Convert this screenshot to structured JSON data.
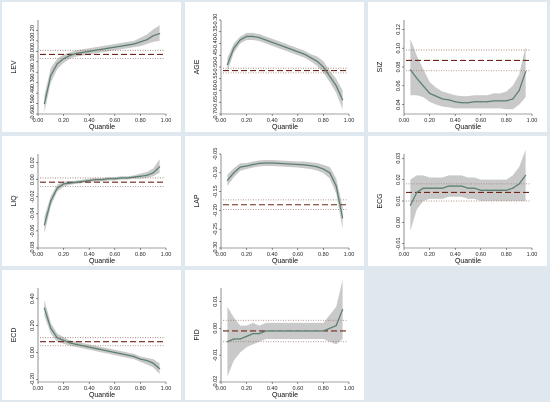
{
  "chart_data": [
    {
      "type": "line",
      "ylabel": "LEV",
      "xlabel": "Quantile",
      "ylim": [
        -0.6,
        0.3
      ],
      "yticks": [
        "-0.60",
        "-0.50",
        "-0.40",
        "-0.30",
        "-0.20",
        "-0.10",
        "0.00",
        "0.10",
        "0.20"
      ],
      "xticks": [
        "0.00",
        "0.20",
        "0.40",
        "0.60",
        "0.80",
        "1.00"
      ],
      "x": [
        0.05,
        0.1,
        0.15,
        0.2,
        0.25,
        0.3,
        0.35,
        0.4,
        0.45,
        0.5,
        0.55,
        0.6,
        0.65,
        0.7,
        0.75,
        0.8,
        0.85,
        0.9,
        0.95
      ],
      "qr": [
        -0.5,
        -0.23,
        -0.12,
        -0.07,
        -0.04,
        -0.02,
        -0.01,
        0.0,
        0.01,
        0.02,
        0.03,
        0.04,
        0.05,
        0.06,
        0.07,
        0.09,
        0.11,
        0.15,
        0.17
      ],
      "qr_lo": [
        -0.58,
        -0.3,
        -0.17,
        -0.11,
        -0.07,
        -0.05,
        -0.04,
        -0.03,
        -0.02,
        -0.01,
        0.0,
        0.01,
        0.02,
        0.03,
        0.04,
        0.05,
        0.07,
        0.09,
        0.1
      ],
      "qr_hi": [
        -0.42,
        -0.16,
        -0.07,
        -0.03,
        -0.01,
        0.01,
        0.02,
        0.03,
        0.04,
        0.05,
        0.06,
        0.07,
        0.08,
        0.09,
        0.1,
        0.13,
        0.16,
        0.21,
        0.25
      ],
      "ols": -0.03,
      "ols_ci": [
        -0.07,
        0.01
      ]
    },
    {
      "type": "line",
      "ylabel": "AGE",
      "xlabel": "Quantile",
      "ylim": [
        -0.7,
        -0.3
      ],
      "yticks": [
        "-0.70",
        "-0.65",
        "-0.60",
        "-0.55",
        "-0.50",
        "-0.45",
        "-0.40",
        "-0.35",
        "-0.30"
      ],
      "xticks": [
        "0.00",
        "0.20",
        "0.40",
        "0.60",
        "0.80",
        "1.00"
      ],
      "x": [
        0.05,
        0.1,
        0.15,
        0.2,
        0.25,
        0.3,
        0.35,
        0.4,
        0.45,
        0.5,
        0.55,
        0.6,
        0.65,
        0.7,
        0.75,
        0.8,
        0.85,
        0.9,
        0.95
      ],
      "qr": [
        -0.49,
        -0.42,
        -0.385,
        -0.37,
        -0.37,
        -0.375,
        -0.385,
        -0.395,
        -0.405,
        -0.415,
        -0.425,
        -0.435,
        -0.445,
        -0.46,
        -0.475,
        -0.5,
        -0.54,
        -0.58,
        -0.64
      ],
      "qr_lo": [
        -0.52,
        -0.44,
        -0.4,
        -0.385,
        -0.385,
        -0.39,
        -0.4,
        -0.41,
        -0.42,
        -0.43,
        -0.44,
        -0.45,
        -0.46,
        -0.475,
        -0.495,
        -0.525,
        -0.565,
        -0.61,
        -0.68
      ],
      "qr_hi": [
        -0.46,
        -0.4,
        -0.37,
        -0.355,
        -0.355,
        -0.36,
        -0.37,
        -0.38,
        -0.39,
        -0.4,
        -0.41,
        -0.42,
        -0.43,
        -0.445,
        -0.455,
        -0.475,
        -0.515,
        -0.55,
        -0.6
      ],
      "ols": -0.515,
      "ols_ci": [
        -0.525,
        -0.505
      ]
    },
    {
      "type": "line",
      "ylabel": "SIZ",
      "xlabel": "Quantile",
      "ylim": [
        0.03,
        0.13
      ],
      "yticks": [
        "0.04",
        "0.06",
        "0.08",
        "0.10",
        "0.12"
      ],
      "xticks": [
        "0.00",
        "0.20",
        "0.40",
        "0.60",
        "0.80",
        "1.00"
      ],
      "x": [
        0.05,
        0.1,
        0.15,
        0.2,
        0.25,
        0.3,
        0.35,
        0.4,
        0.45,
        0.5,
        0.55,
        0.6,
        0.65,
        0.7,
        0.75,
        0.8,
        0.85,
        0.9,
        0.95
      ],
      "qr": [
        0.077,
        0.068,
        0.06,
        0.052,
        0.049,
        0.046,
        0.045,
        0.043,
        0.042,
        0.042,
        0.043,
        0.043,
        0.043,
        0.044,
        0.044,
        0.044,
        0.046,
        0.055,
        0.075
      ],
      "qr_lo": [
        0.05,
        0.05,
        0.048,
        0.043,
        0.04,
        0.038,
        0.037,
        0.036,
        0.036,
        0.036,
        0.036,
        0.036,
        0.036,
        0.036,
        0.036,
        0.035,
        0.035,
        0.04,
        0.048
      ],
      "qr_hi": [
        0.11,
        0.092,
        0.078,
        0.064,
        0.058,
        0.054,
        0.052,
        0.05,
        0.049,
        0.049,
        0.05,
        0.05,
        0.05,
        0.052,
        0.052,
        0.054,
        0.06,
        0.072,
        0.102
      ],
      "ols": 0.087,
      "ols_ci": [
        0.076,
        0.098
      ]
    },
    {
      "type": "line",
      "ylabel": "LIQ",
      "xlabel": "Quantile",
      "ylim": [
        -0.08,
        0.03
      ],
      "yticks": [
        "-0.08",
        "-0.06",
        "-0.04",
        "-0.02",
        "0.00",
        "0.02"
      ],
      "xticks": [
        "0.00",
        "0.20",
        "0.40",
        "0.60",
        "0.80",
        "1.00"
      ],
      "x": [
        0.05,
        0.1,
        0.15,
        0.2,
        0.25,
        0.3,
        0.35,
        0.4,
        0.45,
        0.5,
        0.55,
        0.6,
        0.65,
        0.7,
        0.75,
        0.8,
        0.85,
        0.9,
        0.95
      ],
      "qr": [
        -0.053,
        -0.025,
        -0.01,
        -0.005,
        -0.004,
        -0.003,
        -0.002,
        -0.001,
        0.0,
        0.0,
        0.001,
        0.001,
        0.002,
        0.002,
        0.003,
        0.004,
        0.005,
        0.008,
        0.015
      ],
      "qr_lo": [
        -0.063,
        -0.031,
        -0.014,
        -0.008,
        -0.006,
        -0.005,
        -0.004,
        -0.003,
        -0.002,
        -0.002,
        -0.001,
        -0.001,
        0.0,
        0.0,
        0.001,
        0.001,
        0.002,
        0.004,
        0.008
      ],
      "qr_hi": [
        -0.043,
        -0.019,
        -0.006,
        -0.002,
        -0.002,
        -0.001,
        0.0,
        0.001,
        0.002,
        0.002,
        0.003,
        0.003,
        0.004,
        0.004,
        0.005,
        0.007,
        0.009,
        0.013,
        0.024
      ],
      "ols": -0.003,
      "ols_ci": [
        -0.008,
        0.002
      ]
    },
    {
      "type": "line",
      "ylabel": "LAP",
      "xlabel": "Quantile",
      "ylim": [
        -0.3,
        -0.05
      ],
      "yticks": [
        "-0.30",
        "-0.25",
        "-0.20",
        "-0.15",
        "-0.10",
        "-0.05"
      ],
      "xticks": [
        "0.00",
        "0.20",
        "0.40",
        "0.60",
        "0.80",
        "1.00"
      ],
      "x": [
        0.05,
        0.1,
        0.15,
        0.2,
        0.25,
        0.3,
        0.35,
        0.4,
        0.45,
        0.5,
        0.55,
        0.6,
        0.65,
        0.7,
        0.75,
        0.8,
        0.85,
        0.9,
        0.95
      ],
      "qr": [
        -0.12,
        -0.1,
        -0.085,
        -0.082,
        -0.078,
        -0.075,
        -0.074,
        -0.074,
        -0.075,
        -0.076,
        -0.077,
        -0.078,
        -0.079,
        -0.081,
        -0.084,
        -0.09,
        -0.1,
        -0.135,
        -0.22
      ],
      "qr_lo": [
        -0.135,
        -0.112,
        -0.095,
        -0.09,
        -0.086,
        -0.083,
        -0.082,
        -0.082,
        -0.083,
        -0.084,
        -0.085,
        -0.086,
        -0.088,
        -0.09,
        -0.094,
        -0.101,
        -0.115,
        -0.155,
        -0.25
      ],
      "qr_hi": [
        -0.105,
        -0.088,
        -0.075,
        -0.074,
        -0.07,
        -0.067,
        -0.066,
        -0.066,
        -0.067,
        -0.068,
        -0.069,
        -0.07,
        -0.07,
        -0.072,
        -0.074,
        -0.079,
        -0.085,
        -0.115,
        -0.19
      ],
      "ols": -0.185,
      "ols_ci": [
        -0.198,
        -0.172
      ]
    },
    {
      "type": "line",
      "ylabel": "ECG",
      "xlabel": "Quantile",
      "ylim": [
        -0.012,
        0.032
      ],
      "yticks": [
        "-0.01",
        "0.00",
        "0.01",
        "0.02",
        "0.03"
      ],
      "xticks": [
        "0.00",
        "0.20",
        "0.40",
        "0.60",
        "0.80",
        "1.00"
      ],
      "x": [
        0.05,
        0.1,
        0.15,
        0.2,
        0.25,
        0.3,
        0.35,
        0.4,
        0.45,
        0.5,
        0.55,
        0.6,
        0.65,
        0.7,
        0.75,
        0.8,
        0.85,
        0.9,
        0.95
      ],
      "qr": [
        0.008,
        0.014,
        0.016,
        0.016,
        0.016,
        0.016,
        0.017,
        0.017,
        0.017,
        0.016,
        0.016,
        0.015,
        0.015,
        0.015,
        0.015,
        0.015,
        0.016,
        0.018,
        0.022
      ],
      "qr_lo": [
        -0.004,
        0.006,
        0.01,
        0.011,
        0.011,
        0.011,
        0.012,
        0.012,
        0.012,
        0.011,
        0.011,
        0.01,
        0.01,
        0.01,
        0.01,
        0.01,
        0.01,
        0.01,
        0.01
      ],
      "qr_hi": [
        0.02,
        0.022,
        0.022,
        0.021,
        0.021,
        0.021,
        0.022,
        0.022,
        0.022,
        0.021,
        0.021,
        0.02,
        0.02,
        0.02,
        0.02,
        0.02,
        0.022,
        0.026,
        0.034
      ],
      "ols": 0.014,
      "ols_ci": [
        0.01,
        0.018
      ]
    },
    {
      "type": "line",
      "ylabel": "ECD",
      "xlabel": "Quantile",
      "ylim": [
        -0.22,
        0.48
      ],
      "yticks": [
        "-0.20",
        "0.00",
        "0.20",
        "0.40"
      ],
      "xticks": [
        "0.00",
        "0.20",
        "0.40",
        "0.60",
        "0.80",
        "1.00"
      ],
      "x": [
        0.05,
        0.1,
        0.15,
        0.2,
        0.25,
        0.3,
        0.35,
        0.4,
        0.45,
        0.5,
        0.55,
        0.6,
        0.65,
        0.7,
        0.75,
        0.8,
        0.85,
        0.9,
        0.95
      ],
      "qr": [
        0.33,
        0.18,
        0.11,
        0.09,
        0.07,
        0.06,
        0.05,
        0.04,
        0.03,
        0.02,
        0.01,
        0.0,
        -0.01,
        -0.02,
        -0.03,
        -0.05,
        -0.06,
        -0.08,
        -0.12
      ],
      "qr_lo": [
        0.27,
        0.14,
        0.08,
        0.065,
        0.05,
        0.04,
        0.03,
        0.02,
        0.01,
        0.0,
        -0.01,
        -0.02,
        -0.03,
        -0.04,
        -0.05,
        -0.07,
        -0.09,
        -0.11,
        -0.16
      ],
      "qr_hi": [
        0.39,
        0.22,
        0.14,
        0.115,
        0.09,
        0.08,
        0.07,
        0.06,
        0.05,
        0.04,
        0.03,
        0.02,
        0.01,
        0.0,
        -0.01,
        -0.03,
        -0.04,
        -0.05,
        -0.08
      ],
      "ols": 0.08,
      "ols_ci": [
        0.05,
        0.11
      ]
    },
    {
      "type": "line",
      "ylabel": "FID",
      "xlabel": "Quantile",
      "ylim": [
        -0.02,
        0.015
      ],
      "yticks": [
        "-0.02",
        "-0.01",
        "0.00",
        "0.01"
      ],
      "xticks": [
        "0.00",
        "0.20",
        "0.40",
        "0.60",
        "0.80",
        "1.00"
      ],
      "x": [
        0.05,
        0.1,
        0.15,
        0.2,
        0.25,
        0.3,
        0.35,
        0.4,
        0.45,
        0.5,
        0.55,
        0.6,
        0.65,
        0.7,
        0.75,
        0.8,
        0.85,
        0.9,
        0.95
      ],
      "qr": [
        -0.005,
        -0.004,
        -0.004,
        -0.003,
        -0.002,
        -0.002,
        -0.001,
        -0.001,
        -0.001,
        -0.001,
        -0.001,
        -0.001,
        -0.001,
        -0.001,
        -0.001,
        -0.001,
        0.0,
        0.001,
        0.007
      ],
      "qr_lo": [
        -0.018,
        -0.012,
        -0.009,
        -0.007,
        -0.006,
        -0.005,
        -0.004,
        -0.004,
        -0.004,
        -0.004,
        -0.004,
        -0.004,
        -0.004,
        -0.004,
        -0.004,
        -0.004,
        -0.005,
        -0.006,
        -0.004
      ],
      "qr_hi": [
        0.008,
        0.004,
        0.001,
        0.001,
        0.002,
        0.001,
        0.002,
        0.002,
        0.002,
        0.002,
        0.002,
        0.002,
        0.002,
        0.002,
        0.002,
        0.002,
        0.005,
        0.008,
        0.018
      ],
      "ols": -0.001,
      "ols_ci": [
        -0.005,
        0.003
      ]
    }
  ],
  "colors": {
    "background": "#dfe8ee",
    "panel": "#ffffff",
    "qr_line": "#5b8070",
    "band": "#c0c0c0",
    "ols_line": "#6e2618",
    "ols_ci": "#9a7a6a",
    "axis": "#444444"
  }
}
